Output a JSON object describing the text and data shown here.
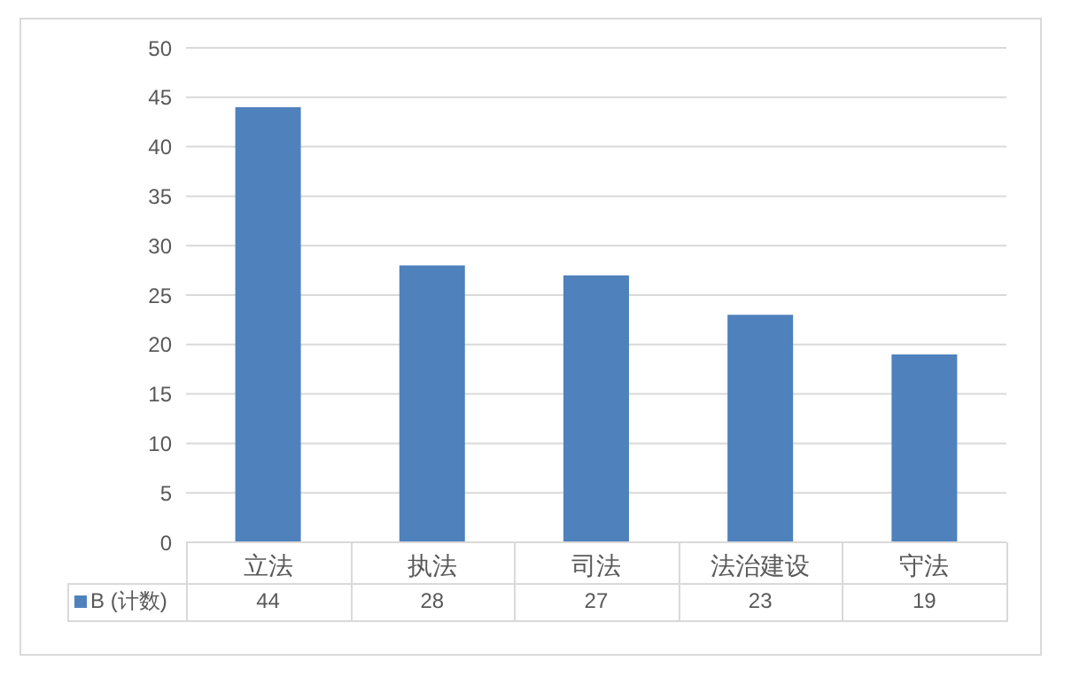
{
  "chart_data": {
    "type": "bar",
    "categories": [
      "立法",
      "执法",
      "司法",
      "法治建设",
      "守法"
    ],
    "series": [
      {
        "name": "B (计数)",
        "color": "#4f81bd",
        "values": [
          44,
          28,
          27,
          23,
          19
        ]
      }
    ],
    "ylim": [
      0,
      50
    ],
    "yticks": [
      0,
      5,
      10,
      15,
      20,
      25,
      30,
      35,
      40,
      45,
      50
    ],
    "grid": "y",
    "legend": "bottom",
    "data_labels": true
  }
}
